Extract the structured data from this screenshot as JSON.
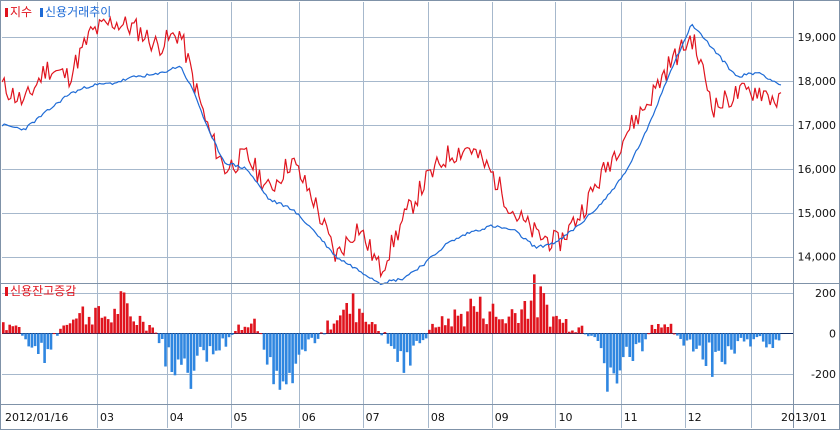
{
  "colors": {
    "index": "#e0141e",
    "credit": "#1e6bd6",
    "bar_pos": "#e0141e",
    "bar_neg": "#2f86e0",
    "grid": "#a6b8cc",
    "frame": "#7f92a8",
    "zero": "#0b2a66"
  },
  "chart_data": [
    {
      "type": "line",
      "legend": {
        "index": "지수",
        "credit": "신용거래추이"
      },
      "yticks": [
        "19,000",
        "18,000",
        "17,000",
        "16,000",
        "15,000",
        "14,000"
      ],
      "ytick_values": [
        19000,
        18000,
        17000,
        16000,
        15000,
        14000
      ],
      "ylim": [
        13400,
        19800
      ],
      "series": [
        {
          "key": "index",
          "name": "지수",
          "x": [
            0,
            1.5,
            3,
            4.5,
            6,
            7.5,
            9,
            10.5,
            12,
            13,
            14,
            15,
            16.5,
            18,
            19.5,
            21,
            22.5,
            24,
            25.5,
            27,
            28.5,
            30,
            31.5,
            33,
            34.5,
            36,
            37.5,
            39,
            40.5,
            42,
            43.5,
            45,
            46.5,
            48,
            49.5,
            51,
            52.5
          ],
          "y": [
            17900,
            17500,
            18300,
            18100,
            19100,
            19350,
            19200,
            18800,
            19100,
            17900,
            16800,
            16000,
            16300,
            15500,
            16200,
            15300,
            14000,
            14700,
            13700,
            14800,
            15700,
            16300,
            16500,
            15900,
            15000,
            14500,
            14300,
            15000,
            15900,
            16800,
            17500,
            18400,
            19000,
            17400,
            17700,
            17800,
            17500
          ]
        },
        {
          "key": "credit",
          "name": "신용거래추이",
          "x": [
            0,
            1.5,
            3,
            4.5,
            6,
            7.5,
            9,
            10.5,
            12,
            13,
            14,
            15,
            16.5,
            18,
            19.5,
            21,
            22.5,
            24,
            25.5,
            27,
            28.5,
            30,
            31.5,
            33,
            34.5,
            36,
            37.5,
            39,
            40.5,
            42,
            43.5,
            45,
            46.5,
            48,
            49.5,
            51,
            52.5
          ],
          "y": [
            17000,
            16900,
            17300,
            17700,
            17900,
            17950,
            18100,
            18150,
            18350,
            17700,
            16800,
            16150,
            16000,
            15300,
            15100,
            14600,
            14000,
            13700,
            13400,
            13500,
            13850,
            14300,
            14550,
            14700,
            14600,
            14200,
            14350,
            14750,
            15250,
            15900,
            16900,
            18200,
            19300,
            18700,
            18100,
            18200,
            17900
          ]
        }
      ]
    },
    {
      "type": "bar",
      "legend": "신용잔고증감",
      "yticks": [
        "200",
        "0",
        "-200"
      ],
      "ytick_values": [
        200,
        0,
        -200
      ],
      "ylim": [
        -350,
        250
      ],
      "xticks": [
        "2012/01/16",
        "03",
        "04",
        "05",
        "06",
        "07",
        "08",
        "09",
        "10",
        "11",
        "12",
        "2013/01"
      ],
      "xtick_week": [
        0,
        6.4,
        11.1,
        15.4,
        20.0,
        24.3,
        28.7,
        33.0,
        37.3,
        41.7,
        46.0,
        50.5
      ],
      "x_range": [
        0,
        52.5
      ],
      "bar_anchors": [
        [
          0,
          60
        ],
        [
          1,
          40
        ],
        [
          2,
          -80
        ],
        [
          3,
          -100
        ],
        [
          4,
          50
        ],
        [
          5,
          100
        ],
        [
          6,
          120
        ],
        [
          7,
          80
        ],
        [
          8,
          150
        ],
        [
          9,
          80
        ],
        [
          10,
          40
        ],
        [
          11,
          -120
        ],
        [
          12,
          -260
        ],
        [
          13,
          -180
        ],
        [
          14,
          -80
        ],
        [
          15,
          -100
        ],
        [
          16,
          80
        ],
        [
          17,
          60
        ],
        [
          18,
          -150
        ],
        [
          19,
          -280
        ],
        [
          20,
          -100
        ],
        [
          21,
          -40
        ],
        [
          22,
          50
        ],
        [
          23,
          120
        ],
        [
          24,
          160
        ],
        [
          25,
          60
        ],
        [
          26,
          -20
        ],
        [
          27,
          -170
        ],
        [
          28,
          -90
        ],
        [
          29,
          30
        ],
        [
          30,
          70
        ],
        [
          31,
          100
        ],
        [
          32,
          150
        ],
        [
          33,
          120
        ],
        [
          34,
          80
        ],
        [
          35,
          160
        ],
        [
          36,
          200
        ],
        [
          37,
          110
        ],
        [
          38,
          60
        ],
        [
          39,
          30
        ],
        [
          40,
          -20
        ],
        [
          41,
          -250
        ],
        [
          42,
          -150
        ],
        [
          43,
          -100
        ],
        [
          44,
          60
        ],
        [
          45,
          40
        ],
        [
          46,
          -40
        ],
        [
          47,
          -120
        ],
        [
          48,
          -200
        ],
        [
          49,
          -90
        ],
        [
          50,
          -60
        ],
        [
          51,
          -40
        ],
        [
          52.5,
          -50
        ]
      ]
    }
  ]
}
